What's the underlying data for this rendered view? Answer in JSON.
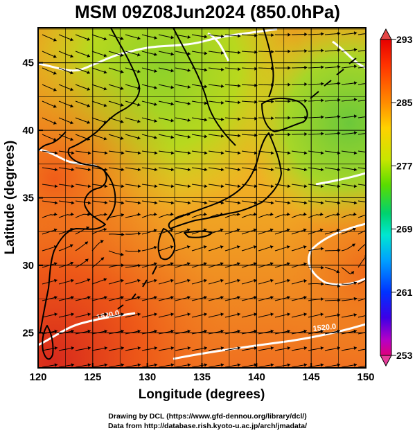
{
  "title": "MSM 09Z08Jun2024 (850.0hPa)",
  "map": {
    "x_axis": {
      "label": "Longitude (degrees)",
      "range": [
        120,
        150
      ],
      "ticks": [
        120,
        125,
        130,
        135,
        140,
        145,
        150
      ]
    },
    "y_axis": {
      "label": "Latitude  (degrees)",
      "range": [
        22.4,
        47.6
      ],
      "ticks": [
        25,
        30,
        35,
        40,
        45
      ]
    },
    "grid": true,
    "contour_labels": [
      "1520.0",
      "1520.0"
    ],
    "colorbar": {
      "min": 253,
      "max": 293,
      "ticks": [
        293,
        285,
        277,
        269,
        261,
        253
      ],
      "colors": [
        "#e0007a",
        "#b400c8",
        "#3c00ff",
        "#0032ff",
        "#00a0ff",
        "#00e6d2",
        "#00d24b",
        "#6ee600",
        "#d7ec00",
        "#ffd200",
        "#ff8c00",
        "#ff3200",
        "#e60000"
      ]
    }
  },
  "credits": {
    "line1": "Drawing by DCL (https://www.gfd-dennou.org/library/dcl/)",
    "line2": "Data from http://database.rish.kyoto-u.ac.jp/arch/jmadata/"
  }
}
